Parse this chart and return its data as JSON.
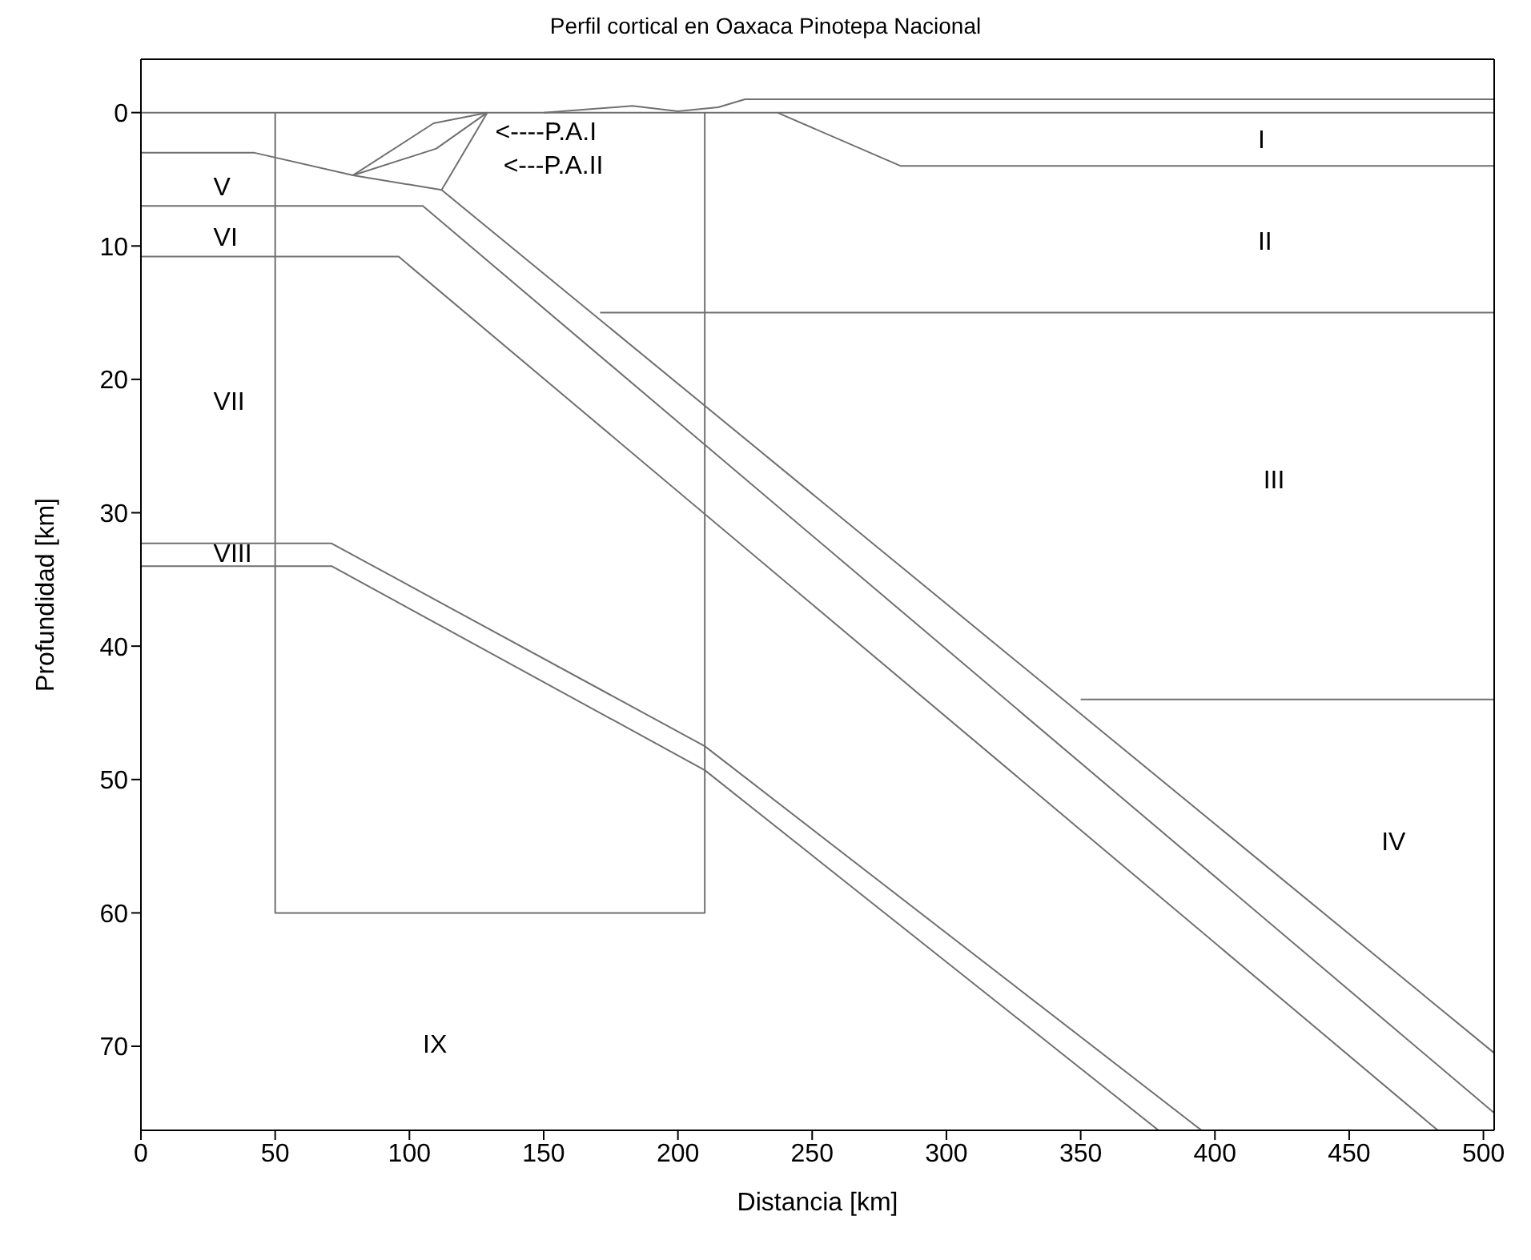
{
  "chart_data": {
    "type": "line",
    "title": "Perfil cortical en Oaxaca Pinotepa Nacional",
    "xlabel": "Distancia [km]",
    "ylabel": "Profundidad [km]",
    "xlim": [
      0,
      504
    ],
    "ylim": [
      76.3,
      -4
    ],
    "xticks": [
      0,
      50,
      100,
      150,
      200,
      250,
      300,
      350,
      400,
      450,
      500
    ],
    "yticks": [
      0,
      10,
      20,
      30,
      40,
      50,
      60,
      70
    ],
    "marker": "none",
    "line_style": "solid",
    "series": [
      {
        "color": "#707070",
        "x": [
          0,
          504
        ],
        "values": [
          0,
          0
        ]
      },
      {
        "color": "#707070",
        "x": [
          150,
          183,
          200,
          215,
          225,
          504
        ],
        "values": [
          0,
          -0.5,
          -0.1,
          -0.4,
          -1,
          -1
        ]
      },
      {
        "color": "#707070",
        "x": [
          237,
          283,
          504
        ],
        "values": [
          0,
          4,
          4
        ]
      },
      {
        "color": "#707070",
        "x": [
          50,
          50,
          210,
          210
        ],
        "values": [
          0,
          60,
          60,
          0
        ]
      },
      {
        "color": "#707070",
        "x": [
          0,
          42,
          79,
          112,
          504
        ],
        "values": [
          3,
          3,
          4.7,
          5.8,
          70.5
        ]
      },
      {
        "color": "#707070",
        "x": [
          79,
          109,
          129
        ],
        "values": [
          4.7,
          0.8,
          0
        ]
      },
      {
        "color": "#707070",
        "x": [
          79,
          110,
          129
        ],
        "values": [
          4.7,
          2.7,
          0
        ]
      },
      {
        "color": "#707070",
        "x": [
          112,
          129
        ],
        "values": [
          5.8,
          0
        ]
      },
      {
        "color": "#707070",
        "x": [
          0,
          105,
          504
        ],
        "values": [
          7,
          7,
          75
        ]
      },
      {
        "color": "#707070",
        "x": [
          0,
          96,
          483
        ],
        "values": [
          10.8,
          10.8,
          76.3
        ]
      },
      {
        "color": "#707070",
        "x": [
          0,
          71,
          210,
          395
        ],
        "values": [
          32.3,
          32.3,
          47.5,
          76.3
        ]
      },
      {
        "color": "#707070",
        "x": [
          0,
          71,
          210,
          379
        ],
        "values": [
          34,
          34,
          49.3,
          76.3
        ]
      },
      {
        "color": "#707070",
        "x": [
          171,
          504
        ],
        "values": [
          15,
          15
        ]
      },
      {
        "color": "#707070",
        "x": [
          350,
          504
        ],
        "values": [
          44,
          44
        ]
      }
    ],
    "annotations": [
      "I",
      "II",
      "III",
      "IV",
      "V",
      "VI",
      "VII",
      "VIII",
      "IX",
      "<----P.A.I",
      "<---P.A.II"
    ]
  }
}
